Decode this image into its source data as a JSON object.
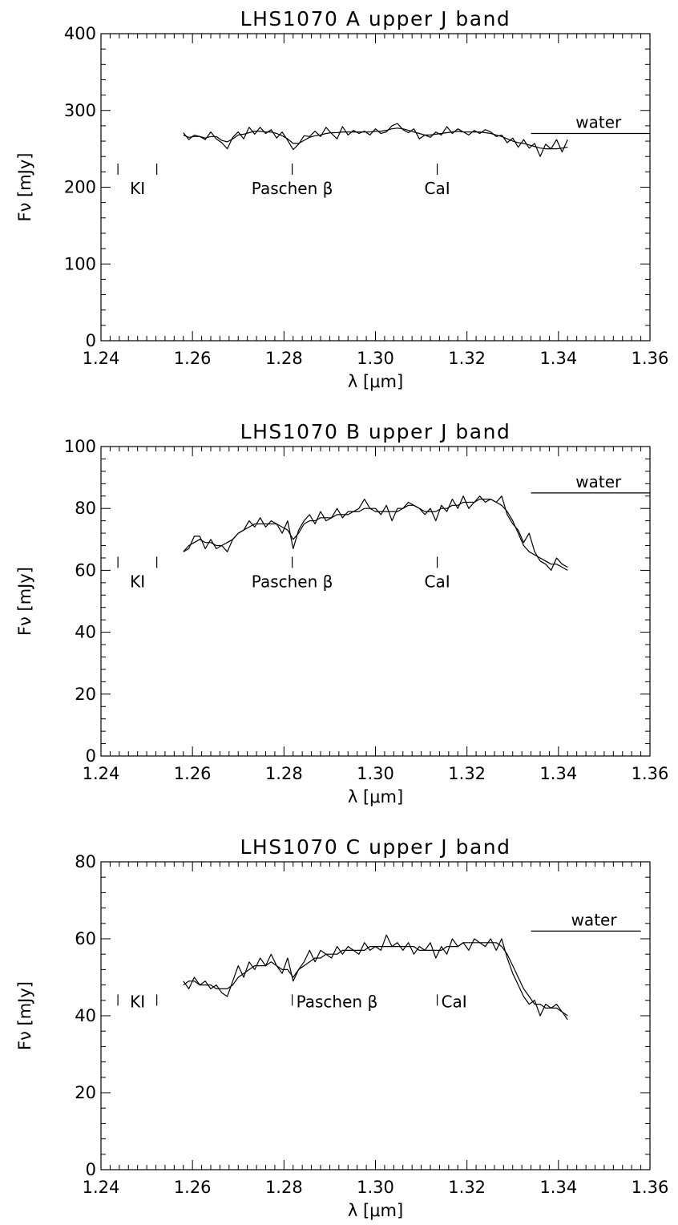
{
  "chart_data": [
    {
      "type": "line",
      "title": "LHS1070 A  upper J band",
      "xlabel": "λ [μm]",
      "ylabel": "Fν [mJy]",
      "xlim": [
        1.24,
        1.36
      ],
      "ylim": [
        0,
        400
      ],
      "xticks": [
        "1.24",
        "1.26",
        "1.28",
        "1.30",
        "1.32",
        "1.34",
        "1.36"
      ],
      "yticks": [
        "0",
        "100",
        "200",
        "300",
        "400"
      ],
      "x": [
        1.258,
        1.2592,
        1.2604,
        1.2616,
        1.2628,
        1.264,
        1.2652,
        1.2664,
        1.2676,
        1.2688,
        1.27,
        1.2712,
        1.2724,
        1.2736,
        1.2748,
        1.276,
        1.2772,
        1.2784,
        1.2796,
        1.2808,
        1.282,
        1.2832,
        1.2844,
        1.2856,
        1.2868,
        1.288,
        1.2892,
        1.2904,
        1.2916,
        1.2928,
        1.294,
        1.2952,
        1.2964,
        1.2976,
        1.2988,
        1.3,
        1.3012,
        1.3024,
        1.3036,
        1.3048,
        1.306,
        1.3072,
        1.3084,
        1.3096,
        1.3108,
        1.312,
        1.3132,
        1.3144,
        1.3156,
        1.3168,
        1.318,
        1.3192,
        1.3204,
        1.3216,
        1.3228,
        1.324,
        1.3252,
        1.3264,
        1.3276,
        1.3288,
        1.33,
        1.3312,
        1.3324,
        1.3336,
        1.3348,
        1.336,
        1.3372,
        1.3384,
        1.3396,
        1.3408,
        1.342
      ],
      "series": [
        {
          "values": [
            271,
            262,
            268,
            266,
            262,
            272,
            263,
            258,
            250,
            265,
            272,
            263,
            278,
            269,
            278,
            270,
            275,
            264,
            272,
            261,
            249,
            256,
            267,
            266,
            273,
            266,
            278,
            270,
            263,
            279,
            268,
            274,
            270,
            273,
            268,
            276,
            270,
            272,
            280,
            283,
            275,
            271,
            276,
            263,
            268,
            265,
            272,
            268,
            279,
            270,
            276,
            272,
            268,
            274,
            270,
            275,
            272,
            266,
            268,
            258,
            264,
            252,
            262,
            251,
            257,
            240,
            256,
            250,
            262,
            246,
            262
          ]
        },
        {
          "values": [
            268,
            265,
            266,
            266,
            264,
            266,
            266,
            261,
            259,
            263,
            268,
            269,
            271,
            273,
            273,
            272,
            272,
            270,
            267,
            263,
            257,
            257,
            261,
            265,
            267,
            268,
            270,
            271,
            271,
            272,
            272,
            272,
            272,
            272,
            272,
            273,
            273,
            274,
            276,
            277,
            276,
            274,
            272,
            270,
            268,
            268,
            269,
            270,
            271,
            272,
            273,
            272,
            272,
            272,
            272,
            271,
            270,
            268,
            266,
            263,
            260,
            258,
            257,
            255,
            253,
            251,
            250,
            250,
            250,
            251,
            252
          ]
        }
      ],
      "annotations": [
        {
          "text": "KI",
          "x": 1.248,
          "ticks": [
            1.2437,
            1.2522
          ],
          "y": 213
        },
        {
          "text": "Paschen β",
          "x": 1.2818,
          "ticks": [
            1.2818
          ],
          "y": 213
        },
        {
          "text": "CaI",
          "x": 1.3135,
          "ticks": [
            1.3135
          ],
          "y": 213
        },
        {
          "text": "water",
          "x_start": 1.334,
          "x_end": 1.36,
          "y": 270
        }
      ]
    },
    {
      "type": "line",
      "title": "LHS1070 B  upper J band",
      "xlabel": "λ [μm]",
      "ylabel": "Fν [mJy]",
      "xlim": [
        1.24,
        1.36
      ],
      "ylim": [
        0,
        100
      ],
      "xticks": [
        "1.24",
        "1.26",
        "1.28",
        "1.30",
        "1.32",
        "1.34",
        "1.36"
      ],
      "yticks": [
        "0",
        "20",
        "40",
        "60",
        "80",
        "100"
      ],
      "x": [
        1.258,
        1.2592,
        1.2604,
        1.2616,
        1.2628,
        1.264,
        1.2652,
        1.2664,
        1.2676,
        1.2688,
        1.27,
        1.2712,
        1.2724,
        1.2736,
        1.2748,
        1.276,
        1.2772,
        1.2784,
        1.2796,
        1.2808,
        1.282,
        1.2832,
        1.2844,
        1.2856,
        1.2868,
        1.288,
        1.2892,
        1.2904,
        1.2916,
        1.2928,
        1.294,
        1.2952,
        1.2964,
        1.2976,
        1.2988,
        1.3,
        1.3012,
        1.3024,
        1.3036,
        1.3048,
        1.306,
        1.3072,
        1.3084,
        1.3096,
        1.3108,
        1.312,
        1.3132,
        1.3144,
        1.3156,
        1.3168,
        1.318,
        1.3192,
        1.3204,
        1.3216,
        1.3228,
        1.324,
        1.3252,
        1.3264,
        1.3276,
        1.3288,
        1.33,
        1.3312,
        1.3324,
        1.3336,
        1.3348,
        1.336,
        1.3372,
        1.3384,
        1.3396,
        1.3408,
        1.342
      ],
      "series": [
        {
          "values": [
            66,
            67,
            71,
            71,
            67,
            70,
            67,
            68,
            66,
            70,
            72,
            73,
            76,
            74,
            77,
            74,
            76,
            75,
            72,
            76,
            67,
            73,
            76,
            78,
            75,
            79,
            76,
            77,
            80,
            77,
            79,
            79,
            80,
            83,
            80,
            80,
            78,
            81,
            76,
            80,
            80,
            82,
            81,
            80,
            78,
            80,
            76,
            81,
            79,
            83,
            80,
            84,
            80,
            82,
            84,
            82,
            83,
            82,
            84,
            78,
            75,
            73,
            69,
            72,
            66,
            63,
            62,
            60,
            64,
            62,
            61
          ]
        },
        {
          "values": [
            66,
            68,
            69,
            70,
            69,
            69,
            68,
            68,
            69,
            70,
            72,
            73,
            74,
            75,
            75,
            75,
            75,
            75,
            74,
            73,
            70,
            72,
            75,
            76,
            76,
            77,
            77,
            77,
            78,
            78,
            78,
            79,
            79,
            80,
            80,
            79,
            79,
            79,
            79,
            79,
            80,
            81,
            81,
            80,
            79,
            79,
            79,
            80,
            80,
            81,
            81,
            82,
            82,
            82,
            83,
            83,
            83,
            82,
            81,
            79,
            76,
            72,
            68,
            66,
            65,
            64,
            63,
            62,
            62,
            61,
            60
          ]
        }
      ],
      "annotations": [
        {
          "text": "KI",
          "x": 1.248,
          "ticks": [
            1.2437,
            1.2522
          ],
          "y": 60
        },
        {
          "text": "Paschen β",
          "x": 1.2818,
          "ticks": [
            1.2818
          ],
          "y": 60
        },
        {
          "text": "CaI",
          "x": 1.3135,
          "ticks": [
            1.3135
          ],
          "y": 60
        },
        {
          "text": "water",
          "x_start": 1.334,
          "x_end": 1.36,
          "y": 85
        }
      ]
    },
    {
      "type": "line",
      "title": "LHS1070 C  upper J band",
      "xlabel": "λ [μm]",
      "ylabel": "Fν [mJy]",
      "xlim": [
        1.24,
        1.36
      ],
      "ylim": [
        0,
        80
      ],
      "xticks": [
        "1.24",
        "1.26",
        "1.28",
        "1.30",
        "1.32",
        "1.34",
        "1.36"
      ],
      "yticks": [
        "0",
        "20",
        "40",
        "60",
        "80"
      ],
      "x": [
        1.258,
        1.2592,
        1.2604,
        1.2616,
        1.2628,
        1.264,
        1.2652,
        1.2664,
        1.2676,
        1.2688,
        1.27,
        1.2712,
        1.2724,
        1.2736,
        1.2748,
        1.276,
        1.2772,
        1.2784,
        1.2796,
        1.2808,
        1.282,
        1.2832,
        1.2844,
        1.2856,
        1.2868,
        1.288,
        1.2892,
        1.2904,
        1.2916,
        1.2928,
        1.294,
        1.2952,
        1.2964,
        1.2976,
        1.2988,
        1.3,
        1.3012,
        1.3024,
        1.3036,
        1.3048,
        1.306,
        1.3072,
        1.3084,
        1.3096,
        1.3108,
        1.312,
        1.3132,
        1.3144,
        1.3156,
        1.3168,
        1.318,
        1.3192,
        1.3204,
        1.3216,
        1.3228,
        1.324,
        1.3252,
        1.3264,
        1.3276,
        1.3288,
        1.33,
        1.3312,
        1.3324,
        1.3336,
        1.3348,
        1.336,
        1.3372,
        1.3384,
        1.3396,
        1.3408,
        1.342
      ],
      "series": [
        {
          "values": [
            49,
            47,
            50,
            48,
            49,
            47,
            48,
            46,
            45,
            49,
            53,
            50,
            54,
            52,
            55,
            53,
            56,
            53,
            51,
            55,
            49,
            52,
            54,
            57,
            54,
            57,
            56,
            55,
            58,
            56,
            58,
            57,
            56,
            59,
            57,
            58,
            57,
            61,
            58,
            59,
            57,
            59,
            56,
            58,
            57,
            59,
            55,
            58,
            56,
            60,
            58,
            59,
            57,
            60,
            59,
            58,
            60,
            57,
            60,
            55,
            51,
            48,
            45,
            43,
            44,
            40,
            43,
            42,
            43,
            41,
            39
          ]
        },
        {
          "values": [
            48,
            49,
            49,
            48,
            48,
            48,
            47,
            47,
            47,
            48,
            50,
            51,
            52,
            53,
            53,
            53,
            54,
            53,
            52,
            52,
            50,
            52,
            53,
            54,
            55,
            55,
            56,
            56,
            56,
            57,
            57,
            57,
            57,
            57,
            58,
            58,
            58,
            58,
            58,
            58,
            58,
            58,
            58,
            57,
            57,
            57,
            57,
            57,
            58,
            58,
            58,
            59,
            59,
            59,
            59,
            59,
            59,
            59,
            58,
            56,
            53,
            50,
            47,
            45,
            43,
            43,
            42,
            42,
            42,
            41,
            40
          ]
        }
      ],
      "annotations": [
        {
          "text": "KI",
          "x": 1.248,
          "ticks": [
            1.2437,
            1.2522
          ],
          "y": 42
        },
        {
          "text": "Paschen β",
          "x": 1.2818,
          "ticks": [
            1.2818
          ],
          "y": 42
        },
        {
          "text": "CaI",
          "x": 1.3135,
          "ticks": [
            1.3135
          ],
          "y": 42
        },
        {
          "text": "water",
          "x_start": 1.334,
          "x_end": 1.358,
          "y": 62
        }
      ]
    }
  ]
}
